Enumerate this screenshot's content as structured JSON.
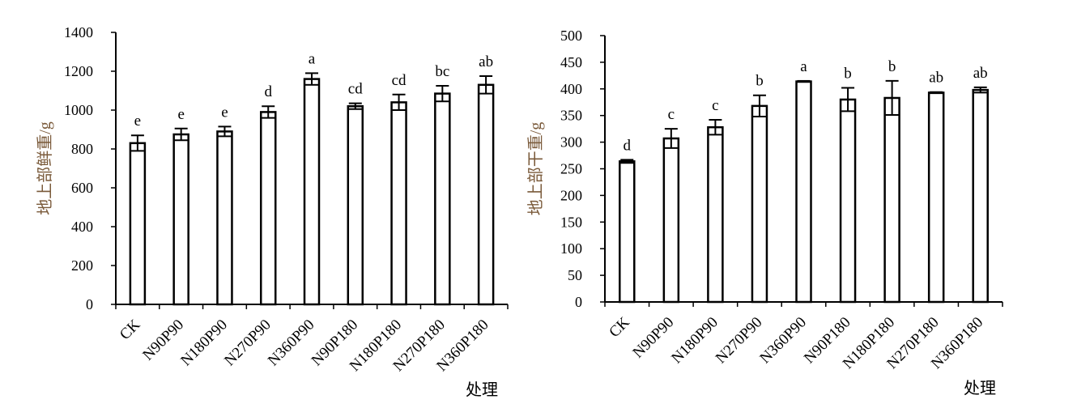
{
  "chart_data": [
    {
      "type": "bar",
      "ylabel": "地上部鲜重/g",
      "xlabel": "处理",
      "ylim": [
        0,
        1400
      ],
      "yticks": [
        0,
        200,
        400,
        600,
        800,
        1000,
        1200,
        1400
      ],
      "categories": [
        "CK",
        "N90P90",
        "N180P90",
        "N270P90",
        "N360P90",
        "N90P180",
        "N180P180",
        "N270P180",
        "N360P180"
      ],
      "values": [
        830,
        875,
        890,
        990,
        1160,
        1020,
        1040,
        1085,
        1130
      ],
      "errors": [
        40,
        30,
        25,
        30,
        30,
        15,
        40,
        40,
        45
      ],
      "significance": [
        "e",
        "e",
        "e",
        "d",
        "a",
        "cd",
        "cd",
        "bc",
        "ab"
      ],
      "grid": false
    },
    {
      "type": "bar",
      "ylabel": "地上部干重/g",
      "xlabel": "处理",
      "ylim": [
        0,
        500
      ],
      "yticks": [
        0,
        50,
        100,
        150,
        200,
        250,
        300,
        350,
        400,
        450,
        500
      ],
      "categories": [
        "CK",
        "N90P90",
        "N180P90",
        "N270P90",
        "N360P90",
        "N90P180",
        "N180P180",
        "N270P180",
        "N360P180"
      ],
      "values": [
        264,
        307,
        328,
        368,
        414,
        380,
        383,
        393,
        398
      ],
      "errors": [
        3,
        18,
        14,
        20,
        1,
        22,
        32,
        1,
        5
      ],
      "significance": [
        "d",
        "c",
        "c",
        "b",
        "a",
        "b",
        "b",
        "ab",
        "ab"
      ],
      "grid": false
    }
  ]
}
